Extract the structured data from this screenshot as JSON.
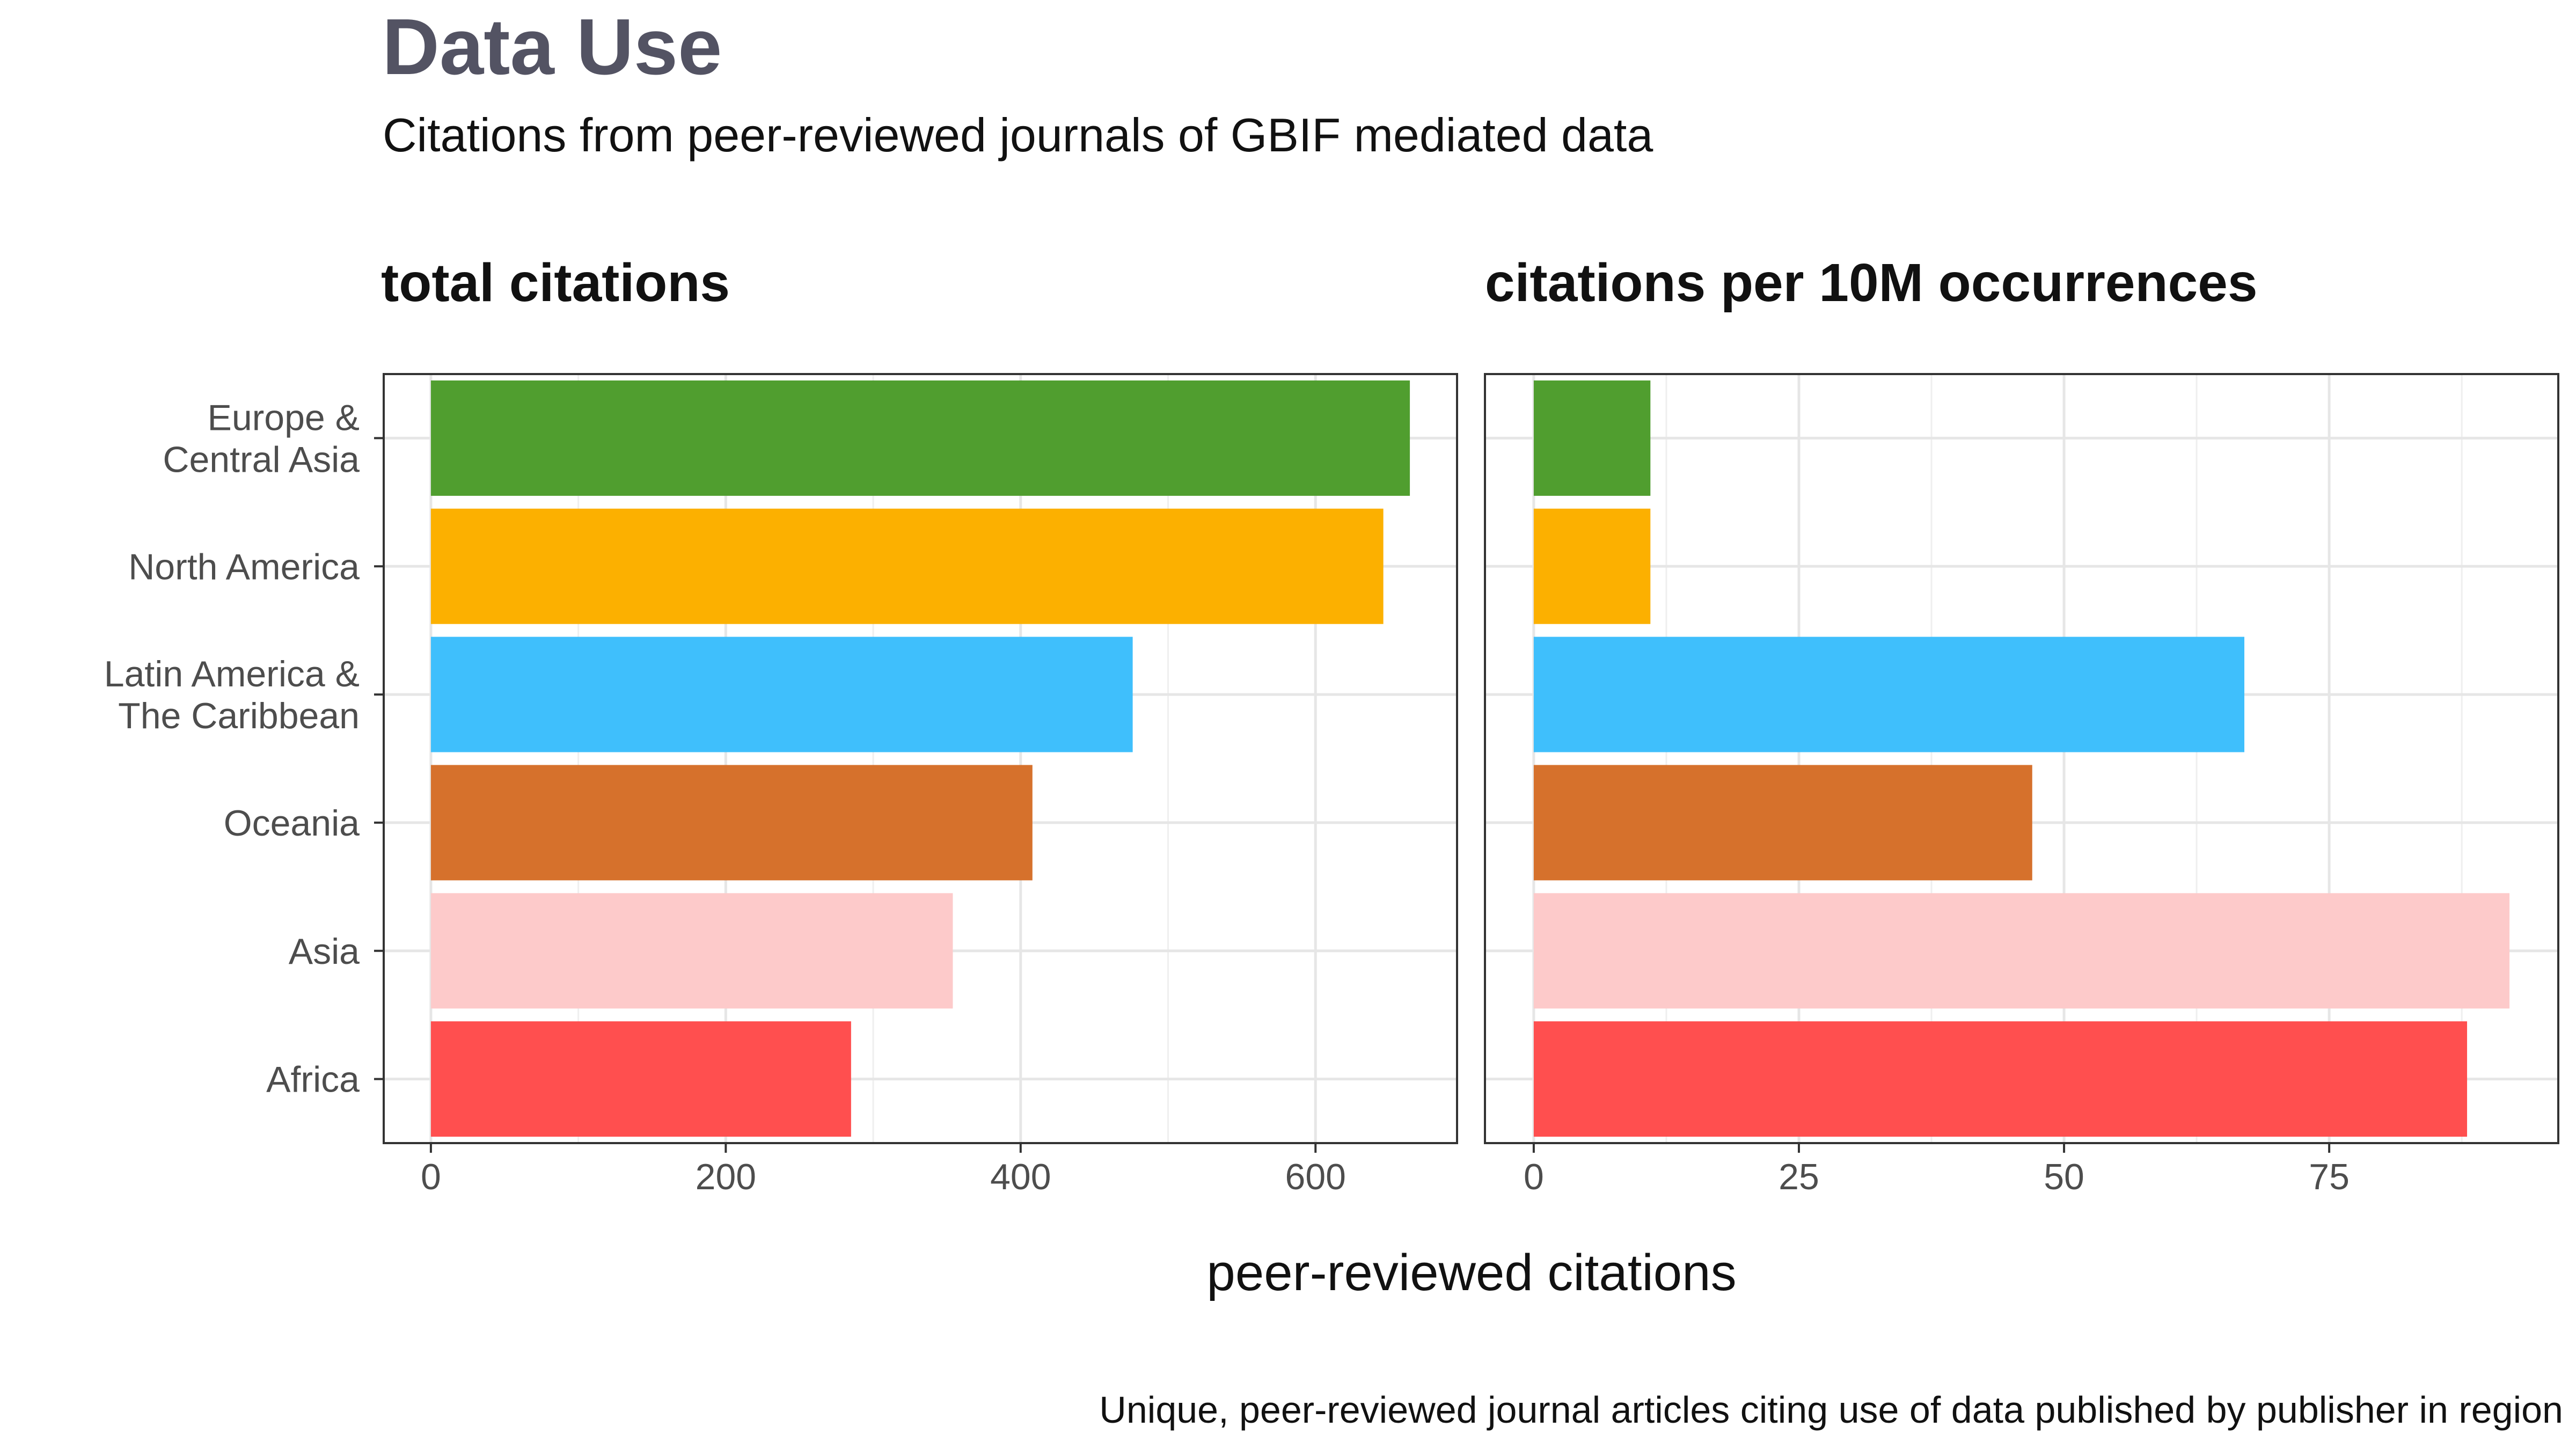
{
  "title": "Data Use",
  "subtitle": "Citations from peer-reviewed journals of GBIF mediated data",
  "caption": "Unique, peer-reviewed journal articles citing use of data published by publisher in region",
  "colors": {
    "Europe & Central Asia": "#509e2f",
    "North America": "#fcb000",
    "Latin America & The Caribbean": "#3fbffc",
    "Oceania": "#d6712c",
    "Asia": "#fdcaca",
    "Africa": "#ff4f4f"
  },
  "chart_data": {
    "type": "bar",
    "orientation": "horizontal",
    "xlabel": "peer-reviewed citations",
    "grid": true,
    "categories": [
      [
        "Europe &",
        "Central Asia"
      ],
      [
        "North America"
      ],
      [
        "Latin America &",
        "The Caribbean"
      ],
      [
        "Oceania"
      ],
      [
        "Asia"
      ],
      [
        "Africa"
      ]
    ],
    "category_keys": [
      "Europe & Central Asia",
      "North America",
      "Latin America & The Caribbean",
      "Oceania",
      "Asia",
      "Africa"
    ],
    "panels": [
      {
        "title": "total citations",
        "xlim": [
          -32,
          696
        ],
        "ticks": [
          0,
          200,
          400,
          600
        ],
        "values": [
          664,
          646,
          476,
          408,
          354,
          285
        ]
      },
      {
        "title": "citations per 10M occurrences",
        "xlim": [
          -4.6,
          96.6
        ],
        "ticks": [
          0,
          25,
          50,
          75
        ],
        "values": [
          11,
          11,
          67,
          47,
          92,
          88
        ]
      }
    ]
  }
}
